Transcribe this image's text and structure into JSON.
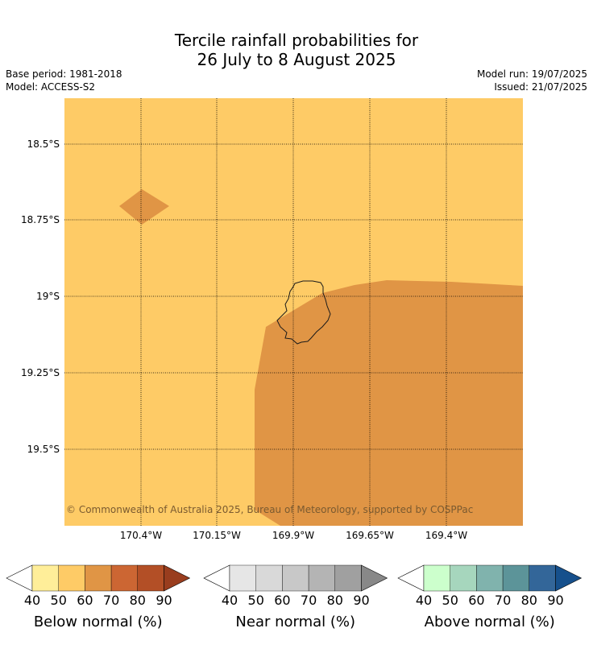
{
  "header": {
    "title_line1": "Tercile rainfall probabilities for",
    "title_line2": "26 July to 8 August 2025",
    "base_period": "Base period: 1981-2018",
    "model": "Model: ACCESS-S2",
    "model_run": "Model run: 19/07/2025",
    "issued": "Issued: 21/07/2025"
  },
  "map": {
    "background_color": "#fecb66",
    "region_color": "#e09545",
    "coast_color": "#fddb94",
    "lat_labels": [
      "18.5°S",
      "18.75°S",
      "19°S",
      "19.25°S",
      "19.5°S"
    ],
    "lon_labels": [
      "170.4°W",
      "170.15°W",
      "169.9°W",
      "169.65°W",
      "169.4°W"
    ],
    "copyright": "© Commonwealth of Australia 2025, Bureau of Meteorology, supported by COSPPac"
  },
  "legends": [
    {
      "label": "Below normal (%)",
      "ticks": [
        "40",
        "50",
        "60",
        "70",
        "80",
        "90"
      ],
      "colors": [
        "#ffee99",
        "#fecb66",
        "#e09545",
        "#cc6633",
        "#b34f26",
        "#993d1e"
      ]
    },
    {
      "label": "Near normal (%)",
      "ticks": [
        "40",
        "50",
        "60",
        "70",
        "80",
        "90"
      ],
      "colors": [
        "#e6e6e6",
        "#d9d9d9",
        "#c8c8c8",
        "#b4b4b4",
        "#a0a0a0",
        "#888888"
      ]
    },
    {
      "label": "Above normal (%)",
      "ticks": [
        "40",
        "50",
        "60",
        "70",
        "80",
        "90"
      ],
      "colors": [
        "#ccffcc",
        "#a6d6bd",
        "#80b3ad",
        "#5c9499",
        "#336699",
        "#16508c"
      ]
    }
  ]
}
